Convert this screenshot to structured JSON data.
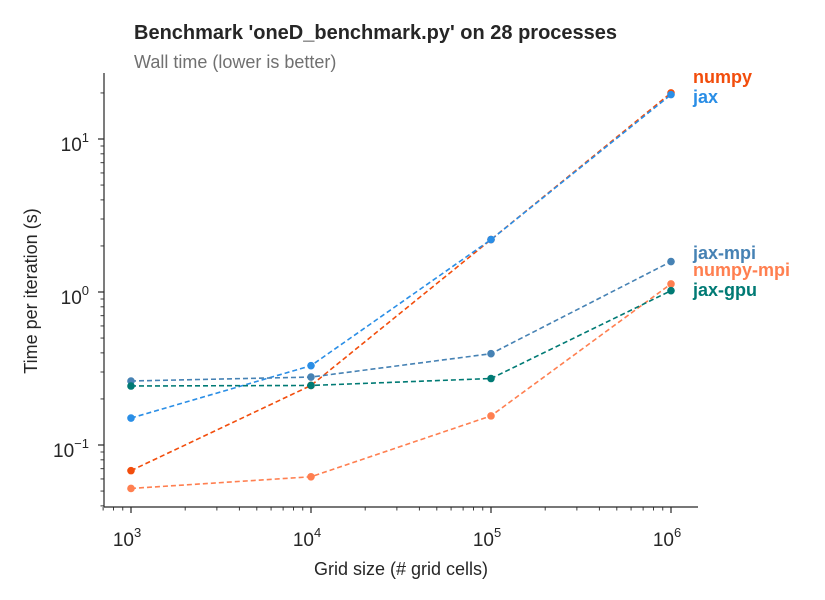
{
  "chart_data": {
    "type": "line",
    "title": "Benchmark 'oneD_benchmark.py' on 28 processes",
    "subtitle": "Wall time (lower is better)",
    "xlabel": "Grid size (# grid cells)",
    "ylabel": "Time per iteration (s)",
    "xscale": "log",
    "yscale": "log",
    "xlim": [
      700,
      1400000
    ],
    "ylim": [
      0.038,
      28
    ],
    "x_ticks": [
      {
        "value": 1000,
        "base": "10",
        "exp": "3"
      },
      {
        "value": 10000,
        "base": "10",
        "exp": "4"
      },
      {
        "value": 100000,
        "base": "10",
        "exp": "5"
      },
      {
        "value": 1000000,
        "base": "10",
        "exp": "6"
      }
    ],
    "y_ticks": [
      {
        "value": 0.1,
        "base": "10",
        "exp": "−1"
      },
      {
        "value": 1,
        "base": "10",
        "exp": "0"
      },
      {
        "value": 10,
        "base": "10",
        "exp": "1"
      }
    ],
    "grid": false,
    "legend_placement": "right-end labels",
    "x": [
      1000,
      10000,
      100000,
      1000000
    ],
    "series": [
      {
        "name": "numpy",
        "color": "#f24d0c",
        "values": [
          0.068,
          0.245,
          2.2,
          20.0
        ]
      },
      {
        "name": "jax",
        "color": "#2a8ee6",
        "values": [
          0.15,
          0.33,
          2.2,
          19.5
        ]
      },
      {
        "name": "jax-mpi",
        "color": "#4682b4",
        "values": [
          0.262,
          0.278,
          0.395,
          1.58
        ]
      },
      {
        "name": "numpy-mpi",
        "color": "#ff7f50",
        "values": [
          0.052,
          0.062,
          0.155,
          1.13
        ]
      },
      {
        "name": "jax-gpu",
        "color": "#007a74",
        "values": [
          0.243,
          0.245,
          0.272,
          1.02
        ]
      }
    ]
  }
}
